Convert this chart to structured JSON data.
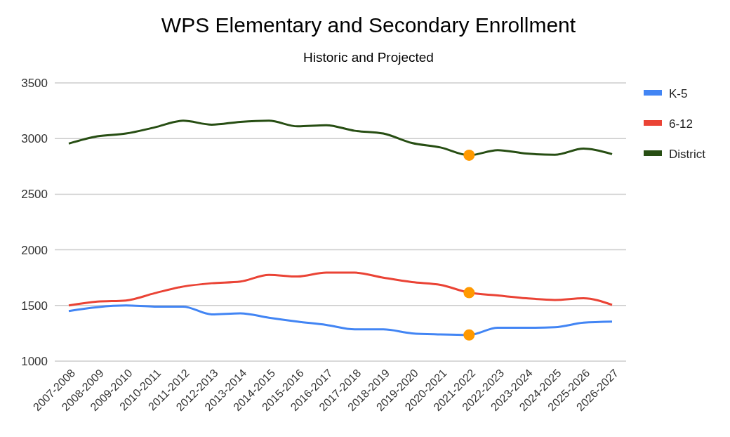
{
  "chart_data": {
    "type": "line",
    "title": "WPS Elementary and Secondary Enrollment",
    "subtitle": "Historic and Projected",
    "categories": [
      "2007-2008",
      "2008-2009",
      "2009-2010",
      "2010-2011",
      "2011-2012",
      "2012-2013",
      "2013-2014",
      "2014-2015",
      "2015-2016",
      "2016-2017",
      "2017-2018",
      "2018-2019",
      "2019-2020",
      "2020-2021",
      "2021-2022",
      "2022-2023",
      "2023-2024",
      "2024-2025",
      "2025-2026",
      "2026-2027"
    ],
    "series": [
      {
        "name": "K-5",
        "marker": "none",
        "color": "#4285f4",
        "values": [
          1450,
          1485,
          1500,
          1490,
          1490,
          1420,
          1430,
          1390,
          1355,
          1325,
          1285,
          1285,
          1250,
          1240,
          1235,
          1300,
          1300,
          1305,
          1345,
          1355
        ]
      },
      {
        "name": "6-12",
        "marker": "none",
        "color": "#ea4335",
        "values": [
          1500,
          1535,
          1545,
          1610,
          1670,
          1700,
          1715,
          1775,
          1760,
          1795,
          1795,
          1750,
          1710,
          1685,
          1615,
          1590,
          1565,
          1550,
          1565,
          1505
        ]
      },
      {
        "name": "District",
        "marker": "none",
        "color": "#274e13",
        "values": [
          2955,
          3020,
          3045,
          3100,
          3160,
          3125,
          3150,
          3160,
          3110,
          3120,
          3070,
          3045,
          2960,
          2920,
          2850,
          2895,
          2865,
          2855,
          2910,
          2860
        ]
      },
      {
        "type": "scatter",
        "color": "#ff9900",
        "x": [
          "2021-2022"
        ],
        "values": [
          1235
        ],
        "marker": "circle"
      },
      {
        "type": "scatter",
        "color": "#ff9900",
        "x": [
          "2021-2022"
        ],
        "values": [
          1615
        ],
        "marker": "circle"
      },
      {
        "type": "scatter",
        "color": "#ff9900",
        "x": [
          "2021-2022"
        ],
        "values": [
          2850
        ],
        "marker": "circle"
      }
    ],
    "ylim": [
      1000,
      3500
    ],
    "yticks": [
      1000,
      1500,
      2000,
      2500,
      3000,
      3500
    ],
    "grid": "y",
    "legend": "right"
  }
}
